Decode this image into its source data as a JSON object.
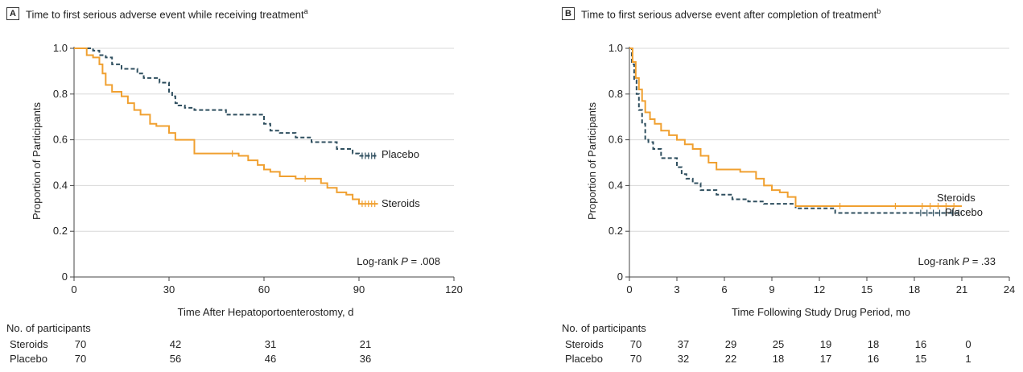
{
  "panels": [
    {
      "letter": "A",
      "title": "Time to first serious adverse event while receiving treatment",
      "title_sup": "a",
      "xlabel": "Time After Hepatoportoenterostomy, d",
      "ylabel": "Proportion of Participants",
      "annotation": {
        "prefix": "Log-rank ",
        "p": "P",
        "suffix": " = .008"
      },
      "risk_header": "No. of participants",
      "risk_rows": [
        {
          "name": "Steroids",
          "values": [
            "70",
            "42",
            "31",
            "21"
          ]
        },
        {
          "name": "Placebo",
          "values": [
            "70",
            "56",
            "46",
            "36"
          ]
        }
      ]
    },
    {
      "letter": "B",
      "title": "Time to first serious adverse event after completion of treatment",
      "title_sup": "b",
      "xlabel": "Time Following Study Drug Period, mo",
      "ylabel": "Proportion of Participants",
      "annotation": {
        "prefix": "Log-rank ",
        "p": "P",
        "suffix": " = .33"
      },
      "risk_header": "No. of participants",
      "risk_rows": [
        {
          "name": "Steroids",
          "values": [
            "70",
            "37",
            "29",
            "25",
            "19",
            "18",
            "16",
            "0"
          ]
        },
        {
          "name": "Placebo",
          "values": [
            "70",
            "32",
            "22",
            "18",
            "17",
            "16",
            "15",
            "1"
          ]
        }
      ]
    }
  ],
  "chart_data": [
    {
      "type": "line",
      "step": true,
      "xlim": [
        0,
        120
      ],
      "ylim": [
        0,
        1
      ],
      "xticks": [
        0,
        30,
        60,
        90,
        120
      ],
      "yticks": [
        0,
        0.2,
        0.4,
        0.6,
        0.8,
        1.0
      ],
      "ytick_labels": [
        "0",
        "0.2",
        "0.4",
        "0.6",
        "0.8",
        "1.0"
      ],
      "grid": "horizontal",
      "risk_times": [
        0,
        30,
        60,
        90
      ],
      "series": [
        {
          "name": "Placebo",
          "color": "#2f4f5f",
          "dash": true,
          "x": [
            0,
            6,
            8,
            10,
            12,
            15,
            20,
            22,
            27,
            30,
            31,
            32,
            33,
            35,
            38,
            48,
            50,
            56,
            60,
            62,
            65,
            70,
            75,
            78,
            83,
            88,
            90,
            96
          ],
          "y": [
            1.0,
            0.99,
            0.97,
            0.96,
            0.93,
            0.91,
            0.89,
            0.87,
            0.85,
            0.81,
            0.79,
            0.76,
            0.75,
            0.74,
            0.73,
            0.71,
            0.71,
            0.71,
            0.67,
            0.64,
            0.63,
            0.61,
            0.59,
            0.59,
            0.56,
            0.54,
            0.53,
            0.53
          ],
          "censor_x": [
            91,
            92,
            93,
            94,
            95
          ]
        },
        {
          "name": "Steroids",
          "color": "#f0a030",
          "dash": false,
          "x": [
            0,
            4,
            6,
            8,
            9,
            10,
            12,
            15,
            17,
            19,
            21,
            24,
            26,
            30,
            32,
            38,
            48,
            52,
            55,
            58,
            60,
            62,
            65,
            70,
            75,
            78,
            80,
            83,
            86,
            88,
            90,
            96
          ],
          "y": [
            1.0,
            0.97,
            0.96,
            0.93,
            0.89,
            0.84,
            0.81,
            0.79,
            0.76,
            0.73,
            0.71,
            0.67,
            0.66,
            0.63,
            0.6,
            0.54,
            0.54,
            0.53,
            0.51,
            0.49,
            0.47,
            0.46,
            0.44,
            0.43,
            0.43,
            0.41,
            0.39,
            0.37,
            0.36,
            0.34,
            0.32,
            0.32
          ],
          "censor_x": [
            50,
            73,
            91,
            92,
            93,
            94,
            95
          ]
        }
      ]
    },
    {
      "type": "line",
      "step": true,
      "xlim": [
        0,
        24
      ],
      "ylim": [
        0,
        1
      ],
      "xticks": [
        0,
        3,
        6,
        9,
        12,
        15,
        18,
        21,
        24
      ],
      "yticks": [
        0,
        0.2,
        0.4,
        0.6,
        0.8,
        1.0
      ],
      "ytick_labels": [
        "0",
        "0.2",
        "0.4",
        "0.6",
        "0.8",
        "1.0"
      ],
      "grid": "horizontal",
      "risk_times": [
        0,
        3,
        6,
        9,
        12,
        15,
        18,
        21
      ],
      "series": [
        {
          "name": "Placebo",
          "color": "#2f4f5f",
          "dash": true,
          "x": [
            0,
            0.15,
            0.3,
            0.45,
            0.6,
            0.8,
            1.0,
            1.2,
            1.5,
            2.0,
            2.5,
            3.0,
            3.3,
            3.6,
            4.0,
            4.5,
            5.5,
            6.5,
            7.5,
            8.5,
            10.5,
            12.0,
            13.0,
            21.0
          ],
          "y": [
            1.0,
            0.93,
            0.86,
            0.8,
            0.73,
            0.67,
            0.6,
            0.59,
            0.56,
            0.52,
            0.52,
            0.48,
            0.45,
            0.43,
            0.41,
            0.38,
            0.36,
            0.34,
            0.33,
            0.32,
            0.3,
            0.3,
            0.28,
            0.28
          ],
          "censor_x": [
            18.4,
            18.8,
            19.2,
            19.6,
            20.0,
            20.4,
            20.8
          ]
        },
        {
          "name": "Steroids",
          "color": "#f0a030",
          "dash": false,
          "x": [
            0,
            0.2,
            0.4,
            0.6,
            0.8,
            1.0,
            1.3,
            1.6,
            2.0,
            2.5,
            3.0,
            3.5,
            4.0,
            4.5,
            5.0,
            5.5,
            6.0,
            7.0,
            8.0,
            8.5,
            9.0,
            9.5,
            10.0,
            10.5,
            13.3,
            21.0
          ],
          "y": [
            1.0,
            0.94,
            0.87,
            0.82,
            0.77,
            0.72,
            0.69,
            0.67,
            0.64,
            0.62,
            0.6,
            0.58,
            0.56,
            0.53,
            0.5,
            0.47,
            0.47,
            0.46,
            0.43,
            0.4,
            0.38,
            0.37,
            0.35,
            0.31,
            0.31,
            0.31
          ],
          "censor_x": [
            13.3,
            16.8,
            18.5,
            19.0,
            19.5,
            20.0,
            20.5
          ]
        }
      ]
    }
  ]
}
